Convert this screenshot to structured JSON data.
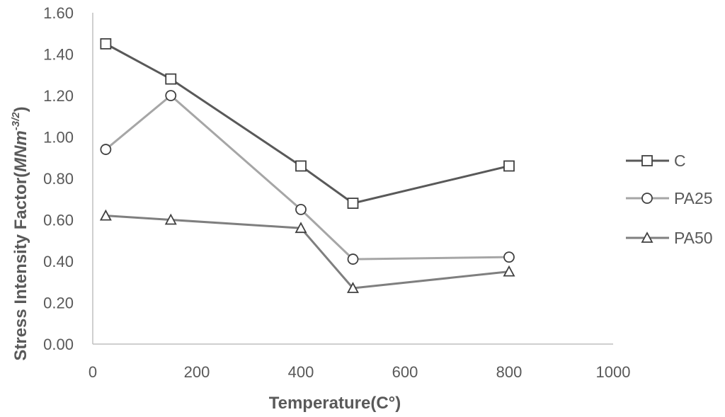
{
  "chart_data": {
    "type": "scatter",
    "xlabel": "Temperature(C°)",
    "ylabel": {
      "main": "Stress Intensity Factor(",
      "unit_base": "MNm",
      "unit_exp": "-3/2",
      "close": ")"
    },
    "xlim": [
      0,
      1000
    ],
    "ylim": [
      0,
      1.6
    ],
    "xticks": [
      "0",
      "200",
      "400",
      "600",
      "800",
      "1000"
    ],
    "xtick_values": [
      0,
      200,
      400,
      600,
      800,
      1000
    ],
    "yticks": [
      "0.00",
      "0.20",
      "0.40",
      "0.60",
      "0.80",
      "1.00",
      "1.20",
      "1.40",
      "1.60"
    ],
    "ytick_values": [
      0,
      0.2,
      0.4,
      0.6,
      0.8,
      1.0,
      1.2,
      1.4,
      1.6
    ],
    "grid": false,
    "legend_position": "right",
    "series": [
      {
        "name": "C",
        "marker": "square",
        "color": "#595959",
        "x": [
          25,
          150,
          400,
          500,
          800
        ],
        "y": [
          1.45,
          1.28,
          0.86,
          0.68,
          0.86
        ]
      },
      {
        "name": "PA25",
        "marker": "circle",
        "color": "#a6a6a6",
        "x": [
          25,
          150,
          400,
          500,
          800
        ],
        "y": [
          0.94,
          1.2,
          0.65,
          0.41,
          0.42
        ]
      },
      {
        "name": "PA50",
        "marker": "triangle",
        "color": "#7f7f7f",
        "x": [
          25,
          150,
          400,
          500,
          800
        ],
        "y": [
          0.62,
          0.6,
          0.56,
          0.27,
          0.35
        ]
      }
    ]
  }
}
